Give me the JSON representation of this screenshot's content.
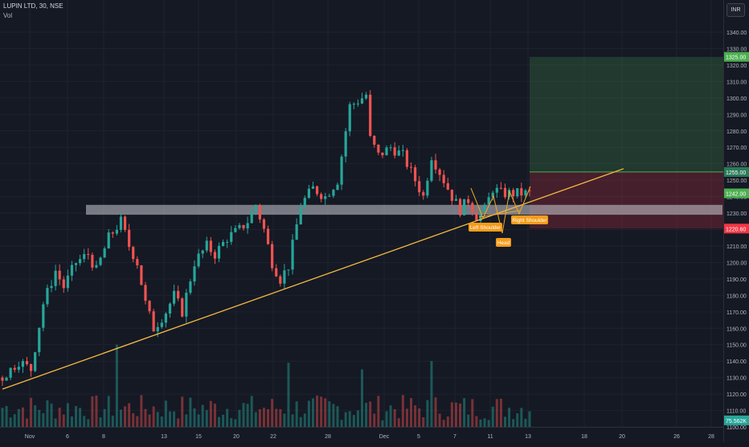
{
  "header": {
    "symbol_title": "LUPIN LTD, 30, NSE",
    "volume_label": "Vol",
    "currency": "INR"
  },
  "price_scale": {
    "ticks": [
      "1340.00",
      "1330.00",
      "1320.00",
      "1310.00",
      "1300.00",
      "1290.00",
      "1280.00",
      "1270.00",
      "1260.00",
      "1250.00",
      "1240.00",
      "1230.00",
      "1220.00",
      "1210.00",
      "1200.00",
      "1190.00",
      "1180.00",
      "1170.00",
      "1160.00",
      "1150.00",
      "1140.00",
      "1130.00",
      "1120.00",
      "1110.00",
      "1100.00"
    ],
    "badges": [
      {
        "label": "1325.00",
        "color": "#4caf50",
        "value": 1325
      },
      {
        "label": "1255.00",
        "color": "#2a7a5a",
        "value": 1255
      },
      {
        "label": "1242.00",
        "color": "#4caf50",
        "value": 1242
      },
      {
        "label": "1220.60",
        "color": "#f23645",
        "value": 1220.6
      },
      {
        "label": "75.562K",
        "color": "#26a69a",
        "value": 1104
      }
    ]
  },
  "time_scale": {
    "labels": [
      "Nov",
      "6",
      "8",
      "13",
      "15",
      "20",
      "22",
      "28",
      "Dec",
      "5",
      "7",
      "11",
      "13",
      "18",
      "20",
      "26",
      "28"
    ]
  },
  "annotations": {
    "left_shoulder": "Left Shoulder",
    "head": "Head",
    "right_shoulder": "Right Shoulder"
  },
  "chart_data": {
    "type": "candlestick",
    "symbol": "LUPIN LTD",
    "interval": "30",
    "exchange": "NSE",
    "ylim": [
      1100,
      1345
    ],
    "support_zone": [
      1229,
      1235
    ],
    "trend_line": [
      [
        0,
        1123
      ],
      [
        152,
        1257
      ]
    ],
    "position": {
      "target": 1325,
      "entry": 1255,
      "stop": 1220.6
    },
    "close_anchors": [
      [
        0,
        1130
      ],
      [
        4,
        1140
      ],
      [
        7,
        1135
      ],
      [
        10,
        1175
      ],
      [
        13,
        1195
      ],
      [
        15,
        1185
      ],
      [
        18,
        1200
      ],
      [
        21,
        1205
      ],
      [
        23,
        1195
      ],
      [
        26,
        1215
      ],
      [
        29,
        1225
      ],
      [
        31,
        1210
      ],
      [
        33,
        1200
      ],
      [
        35,
        1175
      ],
      [
        37,
        1160
      ],
      [
        40,
        1170
      ],
      [
        42,
        1180
      ],
      [
        44,
        1170
      ],
      [
        47,
        1200
      ],
      [
        50,
        1210
      ],
      [
        52,
        1205
      ],
      [
        55,
        1215
      ],
      [
        58,
        1220
      ],
      [
        60,
        1225
      ],
      [
        62,
        1235
      ],
      [
        64,
        1220
      ],
      [
        66,
        1200
      ],
      [
        68,
        1190
      ],
      [
        70,
        1198
      ],
      [
        73,
        1235
      ],
      [
        76,
        1245
      ],
      [
        79,
        1240
      ],
      [
        82,
        1250
      ],
      [
        85,
        1295
      ],
      [
        88,
        1300
      ],
      [
        89,
        1302
      ],
      [
        90,
        1275
      ],
      [
        92,
        1265
      ],
      [
        95,
        1270
      ],
      [
        98,
        1265
      ],
      [
        101,
        1250
      ],
      [
        103,
        1240
      ],
      [
        105,
        1265
      ],
      [
        108,
        1250
      ],
      [
        110,
        1240
      ],
      [
        112,
        1232
      ],
      [
        114,
        1238
      ],
      [
        116,
        1228
      ],
      [
        118,
        1232
      ],
      [
        120,
        1245
      ],
      [
        122,
        1242
      ]
    ],
    "volume_spikes": [
      [
        28,
        1150
      ],
      [
        70,
        1139
      ],
      [
        88,
        1135
      ],
      [
        105,
        1140
      ]
    ]
  }
}
